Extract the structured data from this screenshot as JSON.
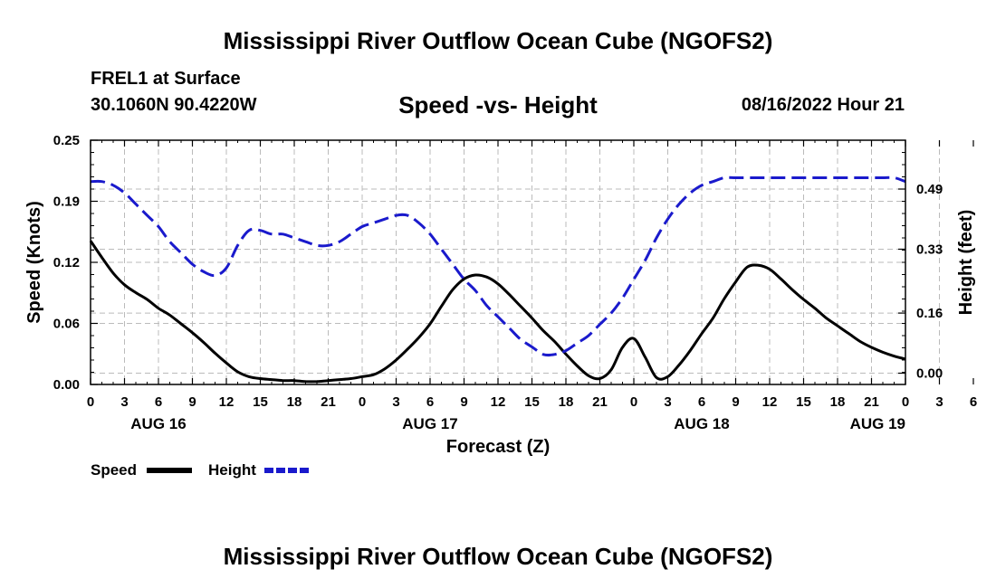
{
  "header": {
    "title": "Mississippi River Outflow Ocean Cube (NGOFS2)",
    "station": "FREL1 at Surface",
    "coordinates": "30.1060N  90.4220W",
    "timestamp": "08/16/2022 Hour 21"
  },
  "footer": {
    "title": "Mississippi River Outflow Ocean Cube (NGOFS2)"
  },
  "colors": {
    "speed": "#000000",
    "height": "#1a1acc",
    "grid": "#bbbbbb"
  },
  "chart_data": {
    "type": "line",
    "title": "Speed -vs- Height",
    "xlabel": "Forecast (Z)",
    "ylabel": "Speed (Knots)",
    "y2label": "Height (feet)",
    "x_range_hours": [
      0,
      72
    ],
    "ylim": [
      0.0,
      0.25
    ],
    "y2lim": [
      -0.03,
      0.62
    ],
    "y_ticks": [
      {
        "value": 0.0,
        "label": "0.00"
      },
      {
        "value": 0.0625,
        "label": "0.06"
      },
      {
        "value": 0.125,
        "label": "0.12"
      },
      {
        "value": 0.1875,
        "label": "0.19"
      },
      {
        "value": 0.25,
        "label": "0.25"
      }
    ],
    "y2_ticks": [
      {
        "value": 0.0,
        "label": "0.00"
      },
      {
        "value": 0.16,
        "label": "0.16"
      },
      {
        "value": 0.33,
        "label": "0.33"
      },
      {
        "value": 0.49,
        "label": "0.49"
      }
    ],
    "x_tick_labels": [
      "0",
      "3",
      "6",
      "9",
      "12",
      "15",
      "18",
      "21",
      "0",
      "3",
      "6",
      "9",
      "12",
      "15",
      "18",
      "21",
      "0",
      "3",
      "6",
      "9",
      "12",
      "15",
      "18",
      "21",
      "0",
      "3",
      "6"
    ],
    "date_labels": [
      {
        "hour": 0,
        "label": "AUG 16"
      },
      {
        "hour": 24,
        "label": "AUG 17"
      },
      {
        "hour": 48,
        "label": "AUG 18"
      },
      {
        "hour": 72,
        "label": "AUG 19"
      }
    ],
    "legend": [
      {
        "name": "Speed",
        "color": "#000000",
        "style": "solid"
      },
      {
        "name": "Height",
        "color": "#1a1acc",
        "style": "dashed"
      }
    ],
    "series": [
      {
        "name": "Speed",
        "axis": "left",
        "style": "solid",
        "x": [
          0,
          1,
          2,
          3,
          4,
          5,
          6,
          7,
          8,
          9,
          10,
          11,
          12,
          13,
          14,
          15,
          16,
          17,
          18,
          19,
          20,
          21,
          22,
          23,
          24,
          25,
          26,
          27,
          28,
          29,
          30,
          31,
          32,
          33,
          34,
          35,
          36,
          37,
          38,
          39,
          40,
          41,
          42,
          43,
          44,
          45,
          46,
          47,
          48,
          49,
          50,
          51,
          52,
          53,
          54,
          55,
          56,
          57,
          58,
          59,
          60,
          61,
          62,
          63,
          64,
          65,
          66,
          67,
          68,
          69,
          70,
          71,
          72
        ],
        "values": [
          0.147,
          0.13,
          0.114,
          0.102,
          0.094,
          0.087,
          0.078,
          0.071,
          0.062,
          0.053,
          0.043,
          0.032,
          0.022,
          0.013,
          0.008,
          0.006,
          0.005,
          0.004,
          0.004,
          0.003,
          0.003,
          0.004,
          0.005,
          0.006,
          0.008,
          0.01,
          0.016,
          0.025,
          0.036,
          0.048,
          0.062,
          0.08,
          0.097,
          0.108,
          0.112,
          0.11,
          0.103,
          0.092,
          0.08,
          0.068,
          0.055,
          0.044,
          0.031,
          0.019,
          0.009,
          0.006,
          0.015,
          0.038,
          0.047,
          0.028,
          0.007,
          0.008,
          0.02,
          0.035,
          0.052,
          0.068,
          0.088,
          0.105,
          0.12,
          0.122,
          0.118,
          0.108,
          0.097,
          0.087,
          0.078,
          0.068,
          0.06,
          0.052,
          0.044,
          0.038,
          0.033,
          0.029,
          0.026
        ]
      },
      {
        "name": "Height",
        "axis": "right",
        "style": "dashed",
        "x": [
          0,
          1,
          2,
          3,
          4,
          5,
          6,
          7,
          8,
          9,
          10,
          11,
          12,
          13,
          14,
          15,
          16,
          17,
          18,
          19,
          20,
          21,
          22,
          23,
          24,
          25,
          26,
          27,
          28,
          29,
          30,
          31,
          32,
          33,
          34,
          35,
          36,
          37,
          38,
          39,
          40,
          41,
          42,
          43,
          44,
          45,
          46,
          47,
          48,
          49,
          50,
          51,
          52,
          53,
          54,
          55,
          56,
          57,
          58,
          59,
          60,
          61,
          62,
          63,
          64,
          65,
          66,
          67,
          68,
          69,
          70,
          71,
          72
        ],
        "values": [
          0.51,
          0.51,
          0.5,
          0.48,
          0.45,
          0.42,
          0.39,
          0.35,
          0.32,
          0.29,
          0.27,
          0.26,
          0.28,
          0.34,
          0.38,
          0.38,
          0.37,
          0.37,
          0.36,
          0.35,
          0.34,
          0.34,
          0.35,
          0.37,
          0.39,
          0.4,
          0.41,
          0.42,
          0.42,
          0.4,
          0.37,
          0.33,
          0.29,
          0.25,
          0.22,
          0.18,
          0.15,
          0.12,
          0.09,
          0.07,
          0.05,
          0.05,
          0.06,
          0.08,
          0.1,
          0.13,
          0.16,
          0.2,
          0.25,
          0.3,
          0.36,
          0.41,
          0.45,
          0.48,
          0.5,
          0.51,
          0.52,
          0.52,
          0.52,
          0.52,
          0.52,
          0.52,
          0.52,
          0.52,
          0.52,
          0.52,
          0.52,
          0.52,
          0.52,
          0.52,
          0.52,
          0.52,
          0.51
        ]
      }
    ]
  }
}
